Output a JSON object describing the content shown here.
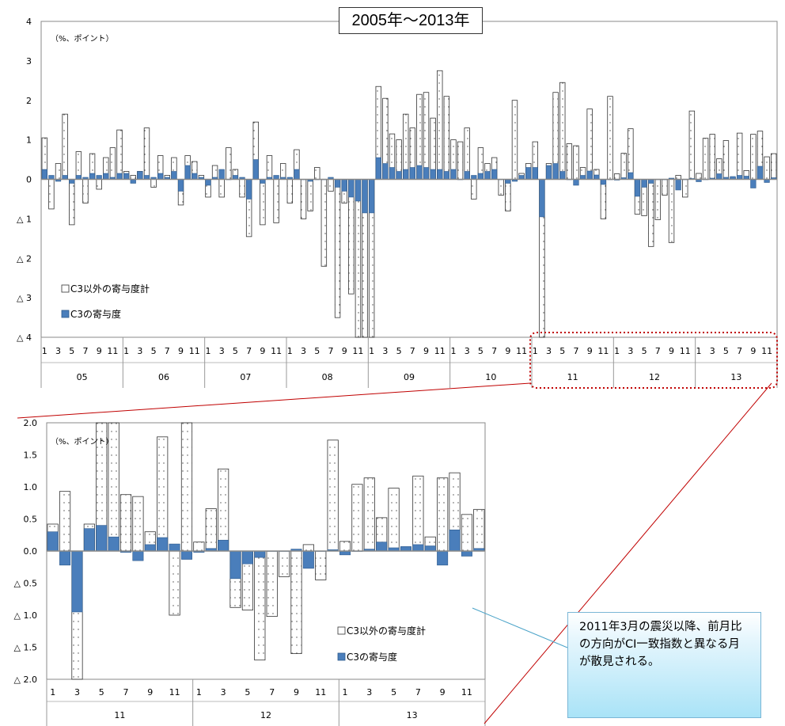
{
  "title": "2005年～2013年",
  "callout": "2011年3月の震災以降、前月比の方向がCI一致指数と異なる月が散見される。",
  "colors": {
    "c3": "#4a7ebb",
    "other_fill": "#ffffff",
    "dots": "#4a4a4a",
    "line": "#c00000"
  },
  "chart_data": [
    {
      "type": "bar",
      "title": "2005年～2013年",
      "unit_label": "（%、ポイント）",
      "ylim": [
        -4,
        4
      ],
      "y_ticks": [
        "4",
        "3",
        "2",
        "1",
        "0",
        "△ 1",
        "△ 2",
        "△ 3",
        "△ 4"
      ],
      "years": [
        "05",
        "06",
        "07",
        "08",
        "09",
        "10",
        "11",
        "12",
        "13"
      ],
      "month_labels": [
        "1",
        "",
        "3",
        "",
        "5",
        "",
        "7",
        "",
        "9",
        "",
        "11",
        ""
      ],
      "series": [
        {
          "name": "C3以外の寄与度計",
          "values": [
            1.05,
            -0.75,
            0.4,
            1.65,
            -1.15,
            0.7,
            -0.6,
            0.65,
            -0.25,
            0.55,
            0.8,
            1.25,
            0.2,
            0.1,
            0.2,
            1.3,
            -0.2,
            0.6,
            0.1,
            0.55,
            -0.65,
            0.6,
            0.45,
            0.1,
            -0.45,
            0.35,
            -0.45,
            0.8,
            0.25,
            -0.45,
            -1.45,
            1.45,
            -1.15,
            0.6,
            -1.1,
            0.4,
            -0.6,
            0.75,
            -1.0,
            -0.8,
            0.3,
            -2.2,
            -0.3,
            -3.5,
            -0.6,
            -2.9,
            -4.0,
            -4.0,
            -4.0,
            2.35,
            2.05,
            1.15,
            1.0,
            1.65,
            1.3,
            2.15,
            2.2,
            1.55,
            2.75,
            2.1,
            1.0,
            0.95,
            1.3,
            -0.5,
            0.8,
            0.4,
            0.55,
            -0.4,
            -0.8,
            2.0,
            0.15,
            0.4,
            0.95,
            -4.0,
            0.4,
            2.2,
            2.45,
            0.9,
            0.85,
            0.3,
            1.78,
            0.25,
            -1.0,
            2.1,
            0.14,
            0.66,
            1.28,
            -0.88,
            -0.92,
            -1.7,
            -1.02,
            -0.4,
            -1.6,
            0.1,
            -0.45,
            1.73,
            0.15,
            1.04,
            1.14,
            0.52,
            0.98,
            0.05,
            1.17,
            0.22,
            1.14,
            1.22,
            0.57,
            0.65
          ]
        },
        {
          "name": "C3の寄与度",
          "values": [
            0.25,
            0.1,
            -0.05,
            0.1,
            -0.1,
            0.1,
            0.05,
            0.15,
            0.1,
            0.15,
            0.05,
            0.15,
            0.15,
            -0.1,
            0.2,
            0.1,
            0.05,
            0.15,
            0.05,
            0.2,
            -0.3,
            0.35,
            0.15,
            0.05,
            -0.15,
            0.05,
            0.25,
            0.0,
            0.1,
            0.05,
            -0.5,
            0.5,
            -0.1,
            0.05,
            0.1,
            0.05,
            0.05,
            0.25,
            0.0,
            -0.05,
            0.0,
            0.0,
            0.05,
            -0.2,
            -0.3,
            -0.45,
            -0.55,
            -0.85,
            -0.85,
            0.55,
            0.4,
            0.3,
            0.2,
            0.25,
            0.3,
            0.35,
            0.3,
            0.25,
            0.25,
            0.2,
            0.25,
            0.0,
            0.2,
            0.1,
            0.15,
            0.2,
            0.25,
            0.0,
            -0.1,
            -0.05,
            0.1,
            0.3,
            0.3,
            -0.95,
            0.35,
            0.4,
            0.2,
            0.0,
            -0.15,
            0.1,
            0.21,
            0.11,
            -0.13,
            0.0,
            -0.02,
            0.04,
            0.17,
            -0.43,
            -0.2,
            -0.1,
            0.0,
            0.0,
            0.03,
            -0.27,
            0.0,
            0.02,
            -0.06,
            0.0,
            0.03,
            0.14,
            0.05,
            0.07,
            0.1,
            0.08,
            -0.22,
            0.33,
            -0.08,
            0.04
          ]
        }
      ]
    },
    {
      "type": "bar",
      "unit_label": "（%、ポイント）",
      "ylim": [
        -2.0,
        2.0
      ],
      "y_ticks": [
        "2.0",
        "1.5",
        "1.0",
        "0.5",
        "0.0",
        "△ 0.5",
        "△ 1.0",
        "△ 1.5",
        "△ 2.0"
      ],
      "years": [
        "11",
        "12",
        "13"
      ],
      "month_labels": [
        "1",
        "",
        "3",
        "",
        "5",
        "",
        "7",
        "",
        "9",
        "",
        "11",
        ""
      ],
      "series": [
        {
          "name": "C3以外の寄与度計",
          "values": [
            0.42,
            0.93,
            -2.0,
            0.42,
            2.0,
            2.0,
            0.88,
            0.85,
            0.3,
            1.78,
            -1.0,
            2.0,
            0.14,
            0.66,
            1.28,
            -0.88,
            -0.92,
            -1.7,
            -1.02,
            -0.4,
            -1.6,
            0.1,
            -0.45,
            1.73,
            0.15,
            1.04,
            1.14,
            0.52,
            0.98,
            0.05,
            1.17,
            0.22,
            1.14,
            1.22,
            0.57,
            0.65
          ]
        },
        {
          "name": "C3の寄与度",
          "values": [
            0.3,
            -0.22,
            -0.95,
            0.35,
            0.4,
            0.22,
            -0.02,
            -0.15,
            0.1,
            0.21,
            0.11,
            -0.13,
            -0.02,
            0.04,
            0.17,
            -0.43,
            -0.2,
            -0.1,
            0.0,
            0.0,
            0.03,
            -0.27,
            0.0,
            0.02,
            -0.06,
            0.0,
            0.03,
            0.14,
            0.05,
            0.07,
            0.1,
            0.08,
            -0.22,
            0.33,
            -0.08,
            0.04
          ]
        }
      ]
    }
  ]
}
